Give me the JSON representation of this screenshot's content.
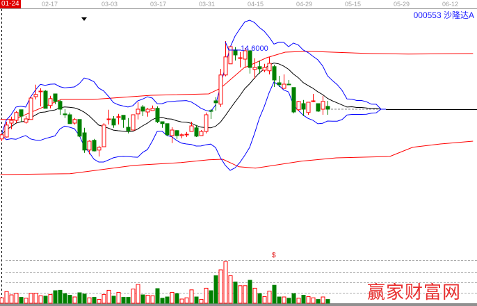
{
  "chart_data": {
    "type": "candlestick",
    "title": "",
    "stock_label": "000553 沙隆达A",
    "high_label": "14.6000",
    "volume_marker": "$",
    "date_ticks": [
      "01-24",
      "02-17",
      "03-03",
      "03-17",
      "03-31",
      "04-15",
      "04-29",
      "05-15",
      "05-29",
      "06-12"
    ],
    "colors": {
      "up": "#ff0000",
      "down": "#008000",
      "boll_band": "#0000ff",
      "boll_mid": "#000000",
      "channel": "#ff0000",
      "last_close": "#808080"
    },
    "indicators": {
      "bollinger_period": 12,
      "bollinger_k": 2
    },
    "candles": [
      [
        11.08,
        11.28,
        11.0,
        11.23
      ],
      [
        11.15,
        11.7,
        11.13,
        11.58
      ],
      [
        11.65,
        11.88,
        11.43,
        11.75
      ],
      [
        11.75,
        12.08,
        11.65,
        12.03
      ],
      [
        12.13,
        12.13,
        11.7,
        11.9
      ],
      [
        11.68,
        11.9,
        11.63,
        11.8
      ],
      [
        11.78,
        12.6,
        11.78,
        12.55
      ],
      [
        12.6,
        13.03,
        12.5,
        12.68
      ],
      [
        12.78,
        12.9,
        12.25,
        12.8
      ],
      [
        12.8,
        12.83,
        12.18,
        12.18
      ],
      [
        12.28,
        12.63,
        12.18,
        12.53
      ],
      [
        12.7,
        12.7,
        12.33,
        12.43
      ],
      [
        12.43,
        12.48,
        11.95,
        12.15
      ],
      [
        11.98,
        12.15,
        11.83,
        11.95
      ],
      [
        11.95,
        12.03,
        11.63,
        11.63
      ],
      [
        11.65,
        11.83,
        11.6,
        11.78
      ],
      [
        11.78,
        11.78,
        11.15,
        11.18
      ],
      [
        11.3,
        11.48,
        10.58,
        10.68
      ],
      [
        10.68,
        11.03,
        10.53,
        11.0
      ],
      [
        11.03,
        11.08,
        10.63,
        10.65
      ],
      [
        10.68,
        10.83,
        10.45,
        10.78
      ],
      [
        10.8,
        11.65,
        10.8,
        11.58
      ],
      [
        11.78,
        12.13,
        11.6,
        11.8
      ],
      [
        11.8,
        11.9,
        11.48,
        11.58
      ],
      [
        11.85,
        11.98,
        11.6,
        11.88
      ],
      [
        11.93,
        11.93,
        11.48,
        11.78
      ],
      [
        11.5,
        11.83,
        11.28,
        11.38
      ],
      [
        11.4,
        11.95,
        11.4,
        11.95
      ],
      [
        11.98,
        12.4,
        11.78,
        12.15
      ],
      [
        12.23,
        12.3,
        11.9,
        12.08
      ],
      [
        12.05,
        12.2,
        11.88,
        12.15
      ],
      [
        12.1,
        12.28,
        12.1,
        12.18
      ],
      [
        12.18,
        12.25,
        11.65,
        11.7
      ],
      [
        11.7,
        11.7,
        11.48,
        11.63
      ],
      [
        11.63,
        11.63,
        11.18,
        11.23
      ],
      [
        11.2,
        11.5,
        10.93,
        11.4
      ],
      [
        11.38,
        11.4,
        11.08,
        11.2
      ],
      [
        11.2,
        11.28,
        11.1,
        11.23
      ],
      [
        11.23,
        11.33,
        11.15,
        11.25
      ],
      [
        11.35,
        11.7,
        11.35,
        11.55
      ],
      [
        11.48,
        11.58,
        11.15,
        11.18
      ],
      [
        11.2,
        11.4,
        11.2,
        11.35
      ],
      [
        11.35,
        12.03,
        11.28,
        11.95
      ],
      [
        12.1,
        12.15,
        11.8,
        12.08
      ],
      [
        12.45,
        12.58,
        12.1,
        12.38
      ],
      [
        12.33,
        13.6,
        12.23,
        13.38
      ],
      [
        13.38,
        14.6,
        13.33,
        14.03
      ],
      [
        13.78,
        14.4,
        13.78,
        14.4
      ],
      [
        14.28,
        14.38,
        13.9,
        14.1
      ],
      [
        13.98,
        14.2,
        13.65,
        14.0
      ],
      [
        13.95,
        14.35,
        13.65,
        14.25
      ],
      [
        14.25,
        14.25,
        13.43,
        13.65
      ],
      [
        13.58,
        13.98,
        13.25,
        13.65
      ],
      [
        13.68,
        13.88,
        13.43,
        13.6
      ],
      [
        13.55,
        13.78,
        13.48,
        13.65
      ],
      [
        13.53,
        14.03,
        13.4,
        13.8
      ],
      [
        13.68,
        13.75,
        12.95,
        13.2
      ],
      [
        13.1,
        13.35,
        12.95,
        13.03
      ],
      [
        12.9,
        13.4,
        12.88,
        13.05
      ],
      [
        13.05,
        13.2,
        13.03,
        13.03
      ],
      [
        12.93,
        12.93,
        12.0,
        12.05
      ],
      [
        12.13,
        12.45,
        12.08,
        12.43
      ],
      [
        12.35,
        12.48,
        11.9,
        12.15
      ],
      [
        12.03,
        12.4,
        11.95,
        12.4
      ],
      [
        12.43,
        12.7,
        12.4,
        12.45
      ],
      [
        12.35,
        12.35,
        12.05,
        12.08
      ],
      [
        12.15,
        12.63,
        11.95,
        12.43
      ],
      [
        12.25,
        12.45,
        11.95,
        12.15
      ]
    ],
    "candle_fields": [
      "open",
      "high",
      "low",
      "close"
    ],
    "volume_relative": [
      13,
      28,
      20,
      24,
      14,
      12,
      24,
      24,
      18,
      17,
      21,
      30,
      31,
      23,
      19,
      15,
      25,
      22,
      13,
      14,
      9,
      21,
      31,
      17,
      26,
      14,
      14,
      34,
      45,
      20,
      19,
      18,
      35,
      12,
      15,
      26,
      23,
      10,
      13,
      32,
      15,
      9,
      36,
      30,
      66,
      80,
      100,
      66,
      51,
      42,
      42,
      55,
      36,
      23,
      16,
      29,
      43,
      15,
      15,
      12,
      23,
      12,
      19,
      16,
      13,
      9,
      15,
      9
    ],
    "channel_upper": [
      [
        -0.2,
        11.78
      ],
      [
        2.6,
        11.78
      ],
      [
        12.3,
        12.5
      ],
      [
        18.8,
        12.5
      ],
      [
        30.8,
        12.65
      ],
      [
        42.6,
        12.7
      ],
      [
        45,
        12.9
      ],
      [
        49.8,
        13.63
      ],
      [
        54.5,
        14.0
      ],
      [
        58.3,
        14.2
      ],
      [
        63.1,
        14.23
      ],
      [
        75.9,
        14.15
      ],
      [
        83.6,
        14.13
      ],
      [
        96.9,
        14.15
      ]
    ],
    "channel_lower": [
      [
        -0.2,
        9.8
      ],
      [
        14.1,
        9.83
      ],
      [
        27.3,
        10.13
      ],
      [
        36.9,
        10.23
      ],
      [
        42.6,
        10.33
      ],
      [
        45.5,
        10.35
      ],
      [
        48.8,
        10.08
      ],
      [
        52.2,
        10.03
      ],
      [
        61.6,
        10.28
      ],
      [
        68.8,
        10.4
      ],
      [
        79.8,
        10.45
      ],
      [
        84.5,
        10.78
      ],
      [
        90.2,
        10.9
      ],
      [
        96.9,
        11.0
      ]
    ]
  },
  "watermark": "赢家财富网"
}
